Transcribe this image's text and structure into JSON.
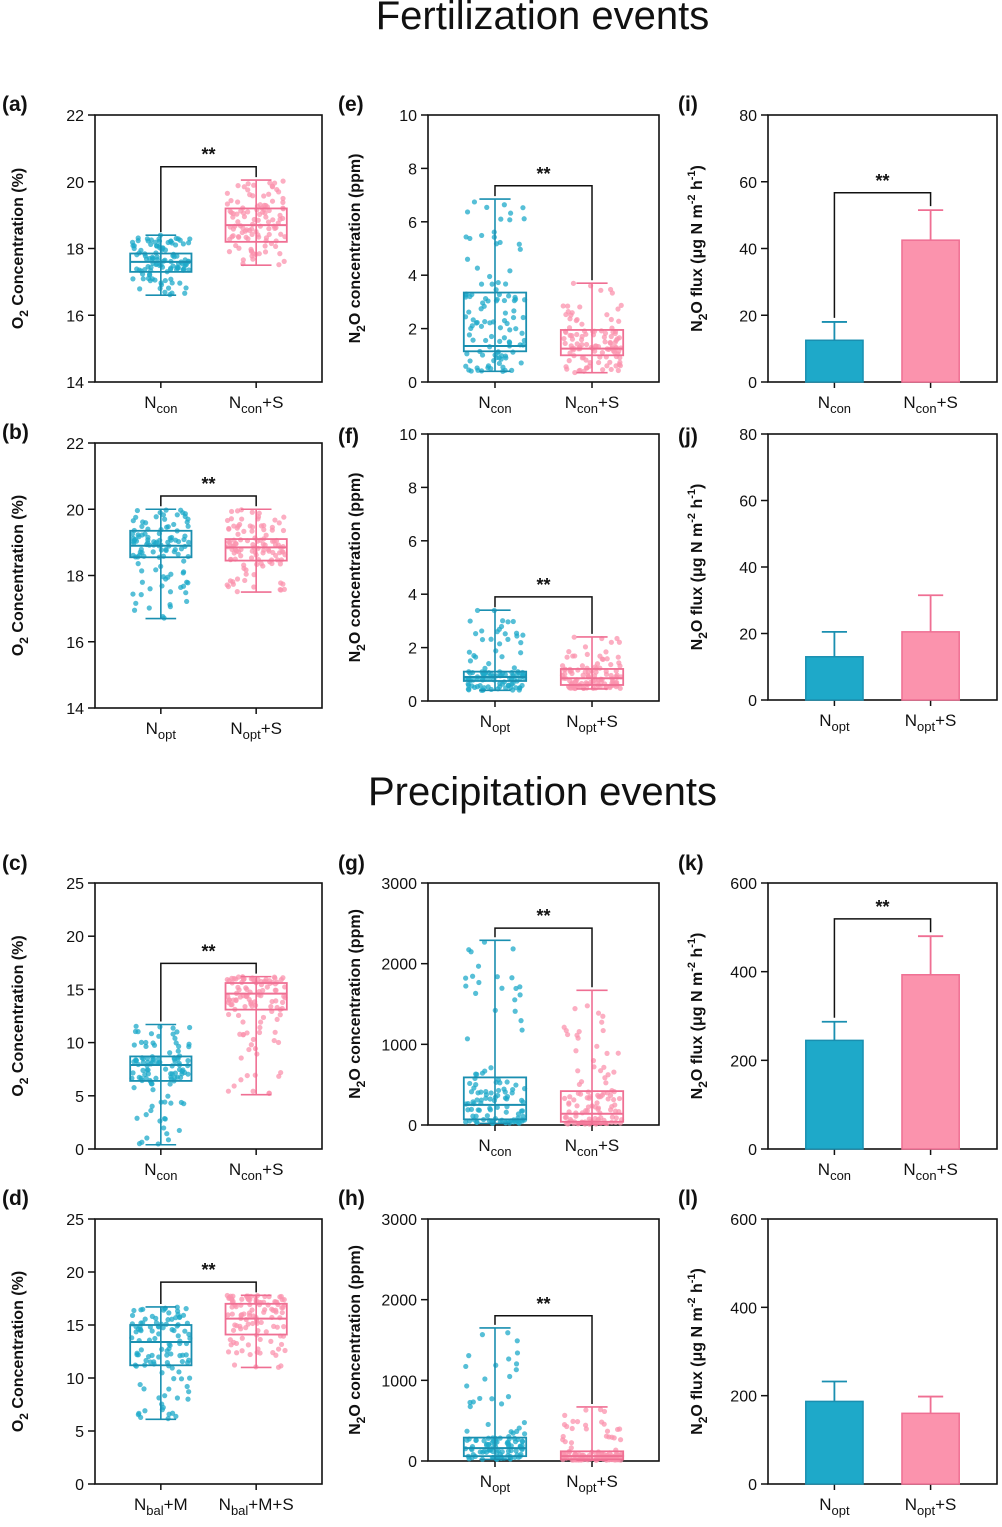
{
  "sections": {
    "fertilization": "Fertilization events",
    "precipitation": "Precipitation events"
  },
  "colors": {
    "teal": "#1a8fb0",
    "teal_fill": "#1ea9c9",
    "pink": "#ef6f93",
    "pink_fill": "#fb93ad"
  },
  "significance_mark": "**",
  "chart_data": [
    {
      "panel": "(a)",
      "type": "box",
      "ylabel": "O2 Concentration (%)",
      "ylim": [
        14,
        22
      ],
      "yticks": [
        14,
        16,
        18,
        20,
        22
      ],
      "categories": [
        {
          "base": "N",
          "sub": "con",
          "suffix": ""
        },
        {
          "base": "N",
          "sub": "con",
          "suffix": "+S"
        }
      ],
      "boxes": [
        {
          "min": 16.6,
          "q1": 17.3,
          "median": 17.6,
          "q3": 17.85,
          "max": 18.4
        },
        {
          "min": 17.5,
          "q1": 18.2,
          "median": 18.7,
          "q3": 19.2,
          "max": 20.05
        }
      ],
      "significance": "**"
    },
    {
      "panel": "(b)",
      "type": "box",
      "ylabel": "O2 Concentration (%)",
      "ylim": [
        14,
        22
      ],
      "yticks": [
        14,
        16,
        18,
        20,
        22
      ],
      "categories": [
        {
          "base": "N",
          "sub": "opt",
          "suffix": ""
        },
        {
          "base": "N",
          "sub": "opt",
          "suffix": "+S"
        }
      ],
      "boxes": [
        {
          "min": 16.7,
          "q1": 18.55,
          "median": 18.9,
          "q3": 19.35,
          "max": 20.0
        },
        {
          "min": 17.5,
          "q1": 18.45,
          "median": 18.85,
          "q3": 19.1,
          "max": 20.0
        }
      ],
      "significance": "**"
    },
    {
      "panel": "(c)",
      "type": "box",
      "ylabel": "O2 Concentration (%)",
      "ylim": [
        0,
        25
      ],
      "yticks": [
        0,
        5,
        10,
        15,
        20,
        25
      ],
      "categories": [
        {
          "base": "N",
          "sub": "con",
          "suffix": ""
        },
        {
          "base": "N",
          "sub": "con",
          "suffix": "+S"
        }
      ],
      "boxes": [
        {
          "min": 0.4,
          "q1": 6.4,
          "median": 7.9,
          "q3": 8.7,
          "max": 11.7
        },
        {
          "min": 5.1,
          "q1": 13.1,
          "median": 14.6,
          "q3": 15.6,
          "max": 16.2
        }
      ],
      "significance": "**"
    },
    {
      "panel": "(d)",
      "type": "box",
      "ylabel": "O2 Concentration (%)",
      "ylim": [
        0,
        25
      ],
      "yticks": [
        0,
        5,
        10,
        15,
        20,
        25
      ],
      "categories": [
        {
          "base": "N",
          "sub": "bal",
          "suffix": "+M"
        },
        {
          "base": "N",
          "sub": "bal",
          "suffix": "+M+S"
        }
      ],
      "boxes": [
        {
          "min": 6.1,
          "q1": 11.2,
          "median": 13.4,
          "q3": 15.0,
          "max": 16.7
        },
        {
          "min": 11.0,
          "q1": 14.1,
          "median": 15.6,
          "q3": 17.0,
          "max": 17.8
        }
      ],
      "significance": "**"
    },
    {
      "panel": "(e)",
      "type": "box",
      "ylabel": "N2O concentration (ppm)",
      "ylim": [
        0,
        10
      ],
      "yticks": [
        0,
        2,
        4,
        6,
        8,
        10
      ],
      "categories": [
        {
          "base": "N",
          "sub": "con",
          "suffix": ""
        },
        {
          "base": "N",
          "sub": "con",
          "suffix": "+S"
        }
      ],
      "boxes": [
        {
          "min": 0.4,
          "q1": 1.15,
          "median": 1.35,
          "q3": 3.35,
          "max": 6.85
        },
        {
          "min": 0.35,
          "q1": 1.0,
          "median": 1.25,
          "q3": 1.95,
          "max": 3.7
        }
      ],
      "significance": "**"
    },
    {
      "panel": "(f)",
      "type": "box",
      "ylabel": "N2O concentration (ppm)",
      "ylim": [
        0,
        10
      ],
      "yticks": [
        0,
        2,
        4,
        6,
        8,
        10
      ],
      "categories": [
        {
          "base": "N",
          "sub": "opt",
          "suffix": ""
        },
        {
          "base": "N",
          "sub": "opt",
          "suffix": "+S"
        }
      ],
      "boxes": [
        {
          "min": 0.4,
          "q1": 0.75,
          "median": 0.9,
          "q3": 1.1,
          "max": 3.4
        },
        {
          "min": 0.45,
          "q1": 0.6,
          "median": 0.85,
          "q3": 1.2,
          "max": 2.4
        }
      ],
      "significance": "**"
    },
    {
      "panel": "(g)",
      "type": "box",
      "ylabel": "N2O concentration (ppm)",
      "ylim": [
        0,
        3000
      ],
      "yticks": [
        0,
        1000,
        2000,
        3000
      ],
      "categories": [
        {
          "base": "N",
          "sub": "con",
          "suffix": ""
        },
        {
          "base": "N",
          "sub": "con",
          "suffix": "+S"
        }
      ],
      "boxes": [
        {
          "min": 20,
          "q1": 70,
          "median": 250,
          "q3": 590,
          "max": 2290
        },
        {
          "min": 10,
          "q1": 40,
          "median": 140,
          "q3": 420,
          "max": 1670
        }
      ],
      "significance": "**"
    },
    {
      "panel": "(h)",
      "type": "box",
      "ylabel": "N2O concentration (ppm)",
      "ylim": [
        0,
        3000
      ],
      "yticks": [
        0,
        1000,
        2000,
        3000
      ],
      "categories": [
        {
          "base": "N",
          "sub": "opt",
          "suffix": ""
        },
        {
          "base": "N",
          "sub": "opt",
          "suffix": "+S"
        }
      ],
      "boxes": [
        {
          "min": 20,
          "q1": 60,
          "median": 160,
          "q3": 290,
          "max": 1650
        },
        {
          "min": 10,
          "q1": 20,
          "median": 60,
          "q3": 120,
          "max": 670
        }
      ],
      "significance": "**"
    },
    {
      "panel": "(i)",
      "type": "bar",
      "ylabel": "N2O flux (μg N m-2 h-1)",
      "ylim": [
        0,
        80
      ],
      "yticks": [
        0,
        20,
        40,
        60,
        80
      ],
      "categories": [
        {
          "base": "N",
          "sub": "con",
          "suffix": ""
        },
        {
          "base": "N",
          "sub": "con",
          "suffix": "+S"
        }
      ],
      "values": [
        12.5,
        42.5
      ],
      "errors": [
        5.5,
        9.0
      ],
      "significance": "**"
    },
    {
      "panel": "(j)",
      "type": "bar",
      "ylabel": "N2O flux (μg N m-2 h-1)",
      "ylim": [
        0,
        80
      ],
      "yticks": [
        0,
        20,
        40,
        60,
        80
      ],
      "categories": [
        {
          "base": "N",
          "sub": "opt",
          "suffix": ""
        },
        {
          "base": "N",
          "sub": "opt",
          "suffix": "+S"
        }
      ],
      "values": [
        13.0,
        20.5
      ],
      "errors": [
        7.5,
        11.0
      ],
      "significance": ""
    },
    {
      "panel": "(k)",
      "type": "bar",
      "ylabel": "N2O flux (μg N m-2 h-1)",
      "ylim": [
        0,
        600
      ],
      "yticks": [
        0,
        200,
        400,
        600
      ],
      "categories": [
        {
          "base": "N",
          "sub": "con",
          "suffix": ""
        },
        {
          "base": "N",
          "sub": "con",
          "suffix": "+S"
        }
      ],
      "values": [
        245,
        393
      ],
      "errors": [
        42,
        87
      ],
      "significance": "**"
    },
    {
      "panel": "(l)",
      "type": "bar",
      "ylabel": "N2O flux (μg N m-2 h-1)",
      "ylim": [
        0,
        600
      ],
      "yticks": [
        0,
        200,
        400,
        600
      ],
      "categories": [
        {
          "base": "N",
          "sub": "opt",
          "suffix": ""
        },
        {
          "base": "N",
          "sub": "opt",
          "suffix": "+S"
        }
      ],
      "values": [
        187,
        160
      ],
      "errors": [
        45,
        38
      ],
      "significance": ""
    }
  ]
}
